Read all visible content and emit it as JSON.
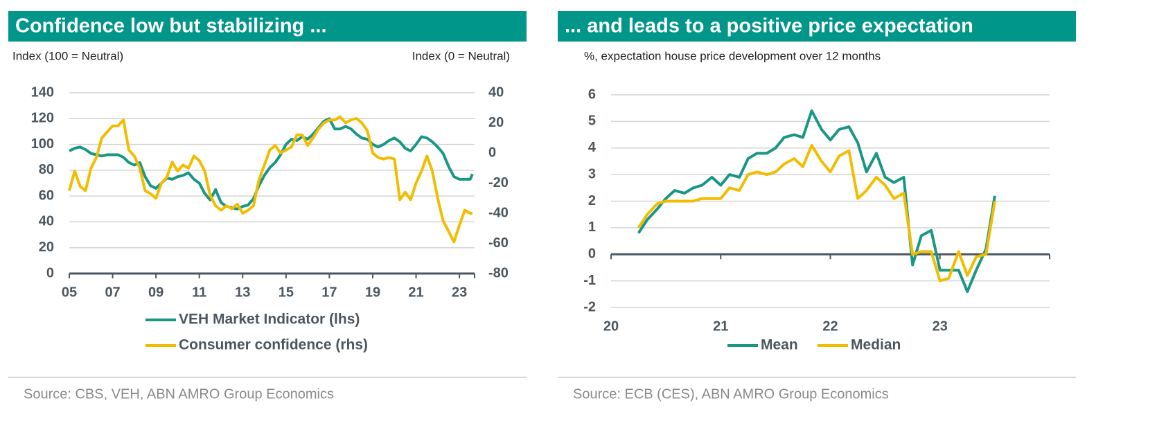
{
  "chart_data": [
    {
      "type": "line",
      "title": "Confidence low but stabilizing ...",
      "y_label": "Index (100 = Neutral)",
      "y2_label": "Index (0 = Neutral)",
      "source": "Source: CBS, VEH, ABN AMRO Group Economics",
      "xlim": [
        2005,
        2023.7
      ],
      "xticks": [
        {
          "value": 2005,
          "label": "05"
        },
        {
          "value": 2007,
          "label": "07"
        },
        {
          "value": 2009,
          "label": "09"
        },
        {
          "value": 2011,
          "label": "11"
        },
        {
          "value": 2013,
          "label": "13"
        },
        {
          "value": 2015,
          "label": "15"
        },
        {
          "value": 2017,
          "label": "17"
        },
        {
          "value": 2019,
          "label": "19"
        },
        {
          "value": 2021,
          "label": "21"
        },
        {
          "value": 2023,
          "label": "23"
        }
      ],
      "ylim": [
        0,
        140
      ],
      "yticks": [
        0,
        20,
        40,
        60,
        80,
        100,
        120,
        140
      ],
      "y2lim": [
        -80,
        40
      ],
      "y2ticks": [
        -80,
        -60,
        -40,
        -20,
        0,
        20,
        40
      ],
      "grid": true,
      "x": [
        2005.0,
        2005.25,
        2005.5,
        2005.75,
        2006.0,
        2006.25,
        2006.5,
        2006.75,
        2007.0,
        2007.25,
        2007.5,
        2007.75,
        2008.0,
        2008.25,
        2008.5,
        2008.75,
        2009.0,
        2009.25,
        2009.5,
        2009.75,
        2010.0,
        2010.25,
        2010.5,
        2010.75,
        2011.0,
        2011.25,
        2011.5,
        2011.75,
        2012.0,
        2012.25,
        2012.5,
        2012.75,
        2013.0,
        2013.25,
        2013.5,
        2013.75,
        2014.0,
        2014.25,
        2014.5,
        2014.75,
        2015.0,
        2015.25,
        2015.5,
        2015.75,
        2016.0,
        2016.25,
        2016.5,
        2016.75,
        2017.0,
        2017.25,
        2017.5,
        2017.75,
        2018.0,
        2018.25,
        2018.5,
        2018.75,
        2019.0,
        2019.25,
        2019.5,
        2019.75,
        2020.0,
        2020.25,
        2020.5,
        2020.75,
        2021.0,
        2021.25,
        2021.5,
        2021.75,
        2022.0,
        2022.25,
        2022.5,
        2022.75,
        2023.0,
        2023.25,
        2023.5,
        2023.6
      ],
      "series": [
        {
          "name": "VEH Market Indicator (lhs)",
          "color": "#1a9685",
          "values": [
            95,
            97,
            98,
            96,
            93,
            92,
            91,
            92,
            92,
            92,
            90,
            86,
            84,
            86,
            75,
            68,
            66,
            70,
            74,
            73,
            75,
            76,
            78,
            73,
            70,
            62,
            57,
            65,
            55,
            52,
            51,
            50,
            52,
            53,
            58,
            68,
            76,
            82,
            86,
            92,
            100,
            104,
            103,
            106,
            104,
            108,
            113,
            118,
            120,
            112,
            112,
            114,
            112,
            108,
            105,
            104,
            100,
            98,
            100,
            103,
            105,
            102,
            97,
            95,
            100,
            106,
            105,
            102,
            98,
            93,
            83,
            75,
            73,
            73,
            73,
            77
          ]
        },
        {
          "name": "Consumer confidence (rhs)",
          "color": "#f2bd00",
          "axis": "y2",
          "values": [
            -25,
            -12,
            -22,
            -25,
            -10,
            -3,
            10,
            14,
            18,
            18,
            22,
            2,
            -2,
            -10,
            -25,
            -27,
            -30,
            -20,
            -16,
            -6,
            -12,
            -8,
            -10,
            -2,
            -5,
            -12,
            -28,
            -35,
            -38,
            -35,
            -37,
            -34,
            -40,
            -38,
            -35,
            -18,
            -8,
            2,
            5,
            0,
            2,
            4,
            12,
            12,
            5,
            10,
            16,
            20,
            22,
            22,
            24,
            20,
            22,
            23,
            20,
            15,
            0,
            -3,
            -4,
            -3,
            -4,
            -31,
            -26,
            -31,
            -20,
            -12,
            -2,
            -12,
            -30,
            -45,
            -52,
            -59,
            -48,
            -38,
            -40,
            -40
          ]
        }
      ]
    },
    {
      "type": "line",
      "title": "... and leads to a positive price expectation",
      "subtitle": "%, expectation house price development over 12 months",
      "source": "Source: ECB (CES), ABN AMRO Group Economics",
      "xlim": [
        2020,
        2024
      ],
      "xticks": [
        {
          "value": 2020,
          "label": "20"
        },
        {
          "value": 2021,
          "label": "21"
        },
        {
          "value": 2022,
          "label": "22"
        },
        {
          "value": 2023,
          "label": "23"
        }
      ],
      "ylim": [
        -2,
        6
      ],
      "yticks": [
        -2,
        -1,
        0,
        1,
        2,
        3,
        4,
        5,
        6
      ],
      "grid": true,
      "x": [
        2020.25,
        2020.33,
        2020.42,
        2020.5,
        2020.58,
        2020.67,
        2020.75,
        2020.83,
        2020.92,
        2021.0,
        2021.08,
        2021.17,
        2021.25,
        2021.33,
        2021.42,
        2021.5,
        2021.58,
        2021.67,
        2021.75,
        2021.83,
        2021.92,
        2022.0,
        2022.08,
        2022.17,
        2022.25,
        2022.33,
        2022.42,
        2022.5,
        2022.58,
        2022.67,
        2022.75,
        2022.83,
        2022.92,
        2023.0,
        2023.08,
        2023.17,
        2023.25,
        2023.33,
        2023.42,
        2023.5
      ],
      "series": [
        {
          "name": "Mean",
          "color": "#1a9685",
          "values": [
            0.8,
            1.3,
            1.7,
            2.1,
            2.4,
            2.3,
            2.5,
            2.6,
            2.9,
            2.6,
            3.0,
            2.9,
            3.6,
            3.8,
            3.8,
            4.0,
            4.4,
            4.5,
            4.4,
            5.4,
            4.7,
            4.3,
            4.7,
            4.8,
            4.2,
            3.1,
            3.8,
            2.9,
            2.7,
            2.9,
            -0.4,
            0.7,
            0.9,
            -0.6,
            -0.6,
            -0.6,
            -1.4,
            -0.6,
            0.2,
            2.2
          ]
        },
        {
          "name": "Median",
          "color": "#f2bd00",
          "values": [
            1.0,
            1.5,
            1.9,
            2.0,
            2.0,
            2.0,
            2.0,
            2.1,
            2.1,
            2.1,
            2.5,
            2.4,
            3.0,
            3.1,
            3.0,
            3.1,
            3.4,
            3.6,
            3.3,
            4.1,
            3.5,
            3.1,
            3.7,
            3.9,
            2.1,
            2.4,
            2.9,
            2.6,
            2.1,
            2.3,
            0.0,
            0.1,
            0.1,
            -1.0,
            -0.9,
            0.1,
            -0.8,
            -0.1,
            0.0,
            2.0
          ]
        }
      ]
    }
  ]
}
